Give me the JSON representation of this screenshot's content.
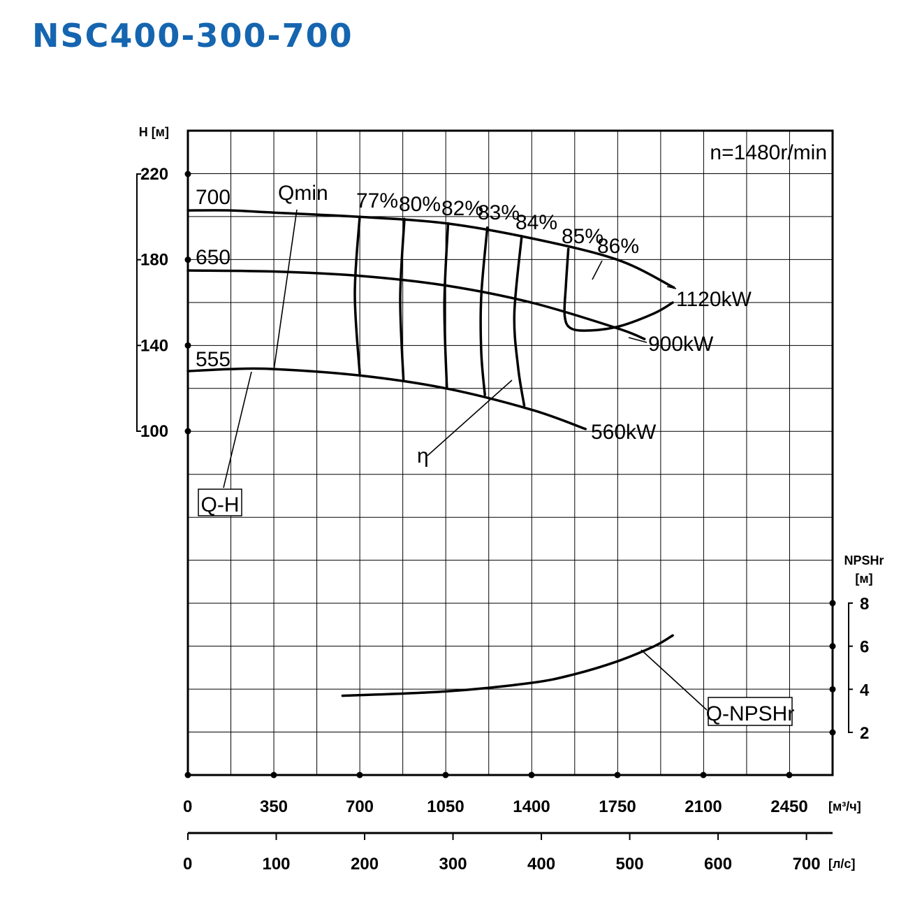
{
  "title": "NSC400-300-700",
  "chart_data": {
    "type": "line",
    "speed_label": "n=1480r/min",
    "y_left": {
      "label": "H [м]",
      "ticks": [
        "220",
        "180",
        "140",
        "100"
      ],
      "range": [
        100,
        220
      ]
    },
    "y_right": {
      "label_line1": "NPSHr",
      "label_line2": "[м]",
      "ticks": [
        "8",
        "6",
        "4",
        "2"
      ],
      "range": [
        2,
        8
      ]
    },
    "x_main": {
      "unit": "[м³/ч]",
      "ticks": [
        "0",
        "350",
        "700",
        "1050",
        "1400",
        "1750",
        "2100",
        "2450"
      ]
    },
    "x_secondary": {
      "unit": "[л/с]",
      "ticks": [
        "0",
        "100",
        "200",
        "300",
        "400",
        "500",
        "600",
        "700"
      ]
    },
    "head_curves": [
      {
        "name": "700",
        "x": [
          0,
          175,
          350,
          700,
          1050,
          1400,
          1750,
          1980
        ],
        "y": [
          203,
          203,
          202,
          200,
          197,
          190,
          180,
          167
        ]
      },
      {
        "name": "650",
        "x": [
          0,
          350,
          700,
          1050,
          1400,
          1750,
          1860
        ],
        "y": [
          175,
          174.5,
          172.5,
          168,
          160,
          148,
          143
        ]
      },
      {
        "name": "555",
        "x": [
          0,
          175,
          350,
          700,
          1050,
          1400,
          1620
        ],
        "y": [
          128,
          129,
          129,
          126,
          120,
          110,
          101
        ]
      }
    ],
    "power_labels": [
      "1120kW",
      "900kW",
      "560kW"
    ],
    "efficiency_labels": [
      "77%",
      "80%",
      "82%",
      "83%",
      "84%",
      "85%",
      "86%"
    ],
    "efficiency_lines": [
      {
        "label": "77%",
        "x": [
          700,
          680,
          700
        ],
        "y": [
          200,
          164,
          127
        ]
      },
      {
        "label": "80%",
        "x": [
          882,
          865,
          878
        ],
        "y": [
          199,
          162,
          124
        ]
      },
      {
        "label": "82%",
        "x": [
          1060,
          1045,
          1055
        ],
        "y": [
          197,
          159,
          120
        ]
      },
      {
        "label": "83%",
        "x": [
          1220,
          1195,
          1195,
          1210
        ],
        "y": [
          195,
          163,
          137,
          117
        ]
      },
      {
        "label": "84%",
        "x": [
          1360,
          1330,
          1345,
          1370
        ],
        "y": [
          191,
          155,
          130,
          112
        ]
      }
    ],
    "efficiency_loop_85": {
      "label": "85%",
      "x": [
        1550,
        1540,
        1535,
        1560,
        1640,
        1760,
        1900,
        1975
      ],
      "y": [
        185,
        168,
        154,
        148,
        147,
        149,
        155,
        160
      ]
    },
    "npshr_curve": {
      "name": "Q-NPSHr",
      "x": [
        630,
        1050,
        1400,
        1575,
        1750,
        1900,
        1975
      ],
      "y": [
        3.7,
        3.9,
        4.3,
        4.7,
        5.3,
        6,
        6.5
      ]
    },
    "annotations": [
      "Qmin",
      "η",
      "Q-H",
      "Q-NPSHr"
    ]
  }
}
